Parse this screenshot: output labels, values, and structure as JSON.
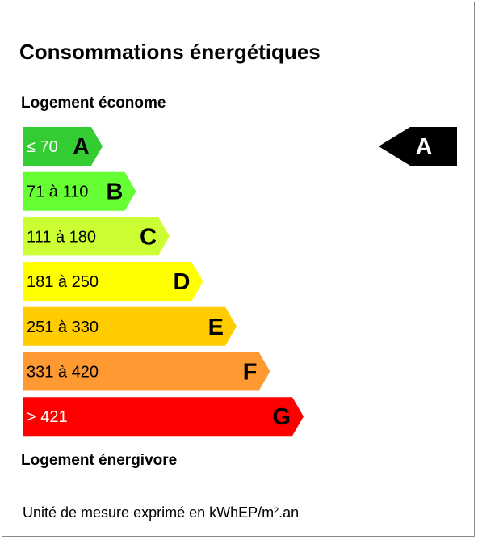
{
  "title": "Consommations énergétiques",
  "top_label": "Logement économe",
  "bottom_label": "Logement énergivore",
  "unit_note": "Unité de mesure exprimé en kWhEP/m².an",
  "chart_data": {
    "type": "bar",
    "classes": [
      {
        "letter": "A",
        "range": "≤ 70",
        "color": "#33cc33",
        "text_color": "#ffffff"
      },
      {
        "letter": "B",
        "range": "71 à 110",
        "color": "#66ff33",
        "text_color": "#000000"
      },
      {
        "letter": "C",
        "range": "111 à 180",
        "color": "#ccff33",
        "text_color": "#000000"
      },
      {
        "letter": "D",
        "range": "181 à 250",
        "color": "#ffff00",
        "text_color": "#000000"
      },
      {
        "letter": "E",
        "range": "251 à 330",
        "color": "#ffcc00",
        "text_color": "#000000"
      },
      {
        "letter": "F",
        "range": "331 à 420",
        "color": "#ff9a33",
        "text_color": "#000000"
      },
      {
        "letter": "G",
        "range": "> 421",
        "color": "#ff0000",
        "text_color": "#ffffff"
      }
    ],
    "indicator": {
      "letter": "A",
      "color": "#000000",
      "text_color": "#ffffff"
    }
  }
}
